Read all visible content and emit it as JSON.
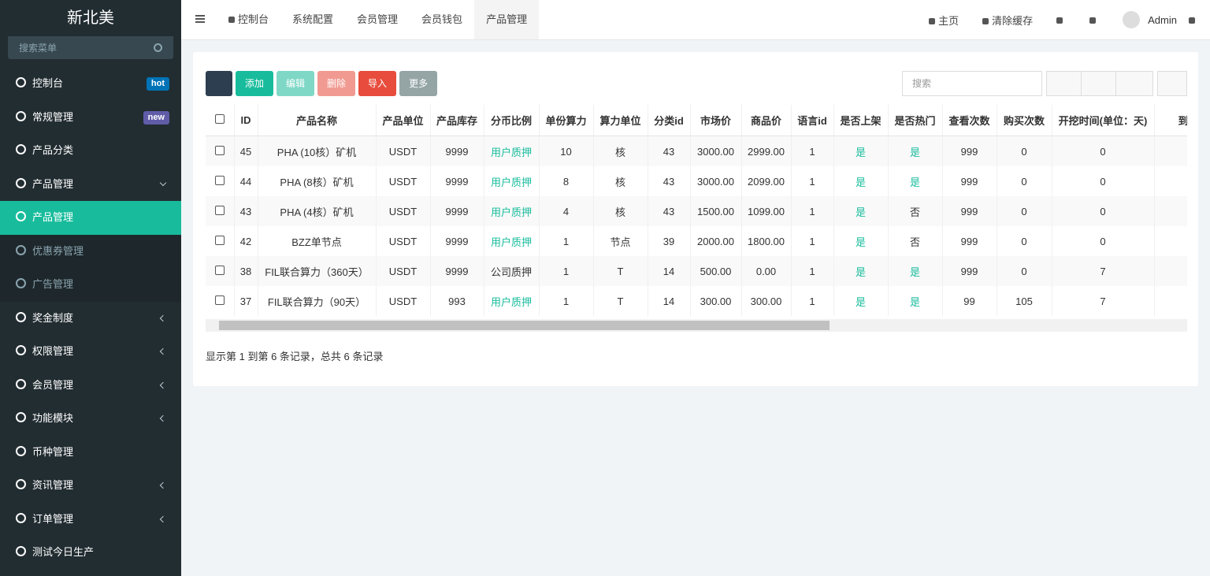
{
  "sidebar": {
    "logo": "新北美",
    "search_placeholder": "搜索菜单",
    "menu": [
      {
        "label": "控制台",
        "badge": {
          "text": "hot",
          "color": "#0073b7"
        }
      },
      {
        "label": "常规管理",
        "badge": {
          "text": "new",
          "color": "#605ca8"
        }
      },
      {
        "label": "产品分类"
      },
      {
        "label": "产品管理",
        "arrow": "down"
      },
      {
        "label": "产品管理",
        "level": 2,
        "active": true
      },
      {
        "label": "优惠券管理",
        "level": 2
      },
      {
        "label": "广告管理",
        "level": 2
      },
      {
        "label": "奖金制度",
        "arrow": "left"
      },
      {
        "label": "权限管理",
        "arrow": "left"
      },
      {
        "label": "会员管理",
        "arrow": "left"
      },
      {
        "label": "功能模块",
        "arrow": "left"
      },
      {
        "label": "币种管理"
      },
      {
        "label": "资讯管理",
        "arrow": "left"
      },
      {
        "label": "订单管理",
        "arrow": "left"
      },
      {
        "label": "测试今日生产"
      }
    ]
  },
  "topbar": {
    "tabs": [
      {
        "label": "控制台"
      },
      {
        "label": "系统配置"
      },
      {
        "label": "会员管理"
      },
      {
        "label": "会员钱包"
      },
      {
        "label": "产品管理",
        "active": true
      }
    ],
    "right": [
      {
        "label": "主页"
      },
      {
        "label": "清除缓存"
      }
    ],
    "user": "Admin"
  },
  "toolbar": {
    "buttons": [
      {
        "label": "添加",
        "color": "#18bc9c"
      },
      {
        "label": "编辑",
        "color": "#7fd8c6"
      },
      {
        "label": "删除",
        "color": "#f19a91"
      },
      {
        "label": "导入",
        "color": "#e74c3c"
      },
      {
        "label": "更多",
        "color": "#95a5a6"
      }
    ],
    "search_placeholder": "搜索"
  },
  "table": {
    "columns": [
      "ID",
      "产品名称",
      "产品单位",
      "产品库存",
      "分币比例",
      "单份算力",
      "算力单位",
      "分类id",
      "市场价",
      "商品价",
      "语言id",
      "是否上架",
      "是否热门",
      "查看次数",
      "购买次数",
      "开挖时间(单位：天)",
      "到期时"
    ],
    "rows": [
      [
        "45",
        "PHA (10核）矿机",
        "USDT",
        "9999",
        {
          "text": "用户质押",
          "color": "#18bc9c"
        },
        "10",
        "核",
        "43",
        "3000.00",
        "2999.00",
        "1",
        {
          "text": "是",
          "color": "#18bc9c"
        },
        {
          "text": "是",
          "color": "#18bc9c"
        },
        "999",
        "0",
        "0"
      ],
      [
        "44",
        "PHA (8核）矿机",
        "USDT",
        "9999",
        {
          "text": "用户质押",
          "color": "#18bc9c"
        },
        "8",
        "核",
        "43",
        "3000.00",
        "2099.00",
        "1",
        {
          "text": "是",
          "color": "#18bc9c"
        },
        {
          "text": "是",
          "color": "#18bc9c"
        },
        "999",
        "0",
        "0"
      ],
      [
        "43",
        "PHA (4核）矿机",
        "USDT",
        "9999",
        {
          "text": "用户质押",
          "color": "#18bc9c"
        },
        "4",
        "核",
        "43",
        "1500.00",
        "1099.00",
        "1",
        {
          "text": "是",
          "color": "#18bc9c"
        },
        "否",
        "999",
        "0",
        "0"
      ],
      [
        "42",
        "BZZ单节点",
        "USDT",
        "9999",
        {
          "text": "用户质押",
          "color": "#18bc9c"
        },
        "1",
        "节点",
        "39",
        "2000.00",
        "1800.00",
        "1",
        {
          "text": "是",
          "color": "#18bc9c"
        },
        "否",
        "999",
        "0",
        "0"
      ],
      [
        "38",
        "FIL联合算力（360天）",
        "USDT",
        "9999",
        "公司质押",
        "1",
        "T",
        "14",
        "500.00",
        "0.00",
        "1",
        {
          "text": "是",
          "color": "#18bc9c"
        },
        {
          "text": "是",
          "color": "#18bc9c"
        },
        "999",
        "0",
        "7"
      ],
      [
        "37",
        "FIL联合算力（90天）",
        "USDT",
        "993",
        {
          "text": "用户质押",
          "color": "#18bc9c"
        },
        "1",
        "T",
        "14",
        "300.00",
        "300.00",
        "1",
        {
          "text": "是",
          "color": "#18bc9c"
        },
        {
          "text": "是",
          "color": "#18bc9c"
        },
        "99",
        "105",
        "7"
      ]
    ]
  },
  "pagination": "显示第 1 到第 6 条记录，总共 6 条记录"
}
